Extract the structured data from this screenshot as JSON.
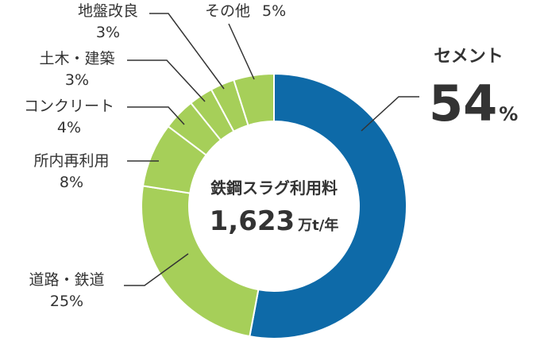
{
  "chart_data": {
    "type": "pie",
    "style": "donut",
    "center_label": "鉄鋼スラグ利用料",
    "center_value": "1,623",
    "center_unit": "万t/年",
    "colors": {
      "highlight": "#0e6aa8",
      "other": "#a6cf59",
      "separator": "#ffffff",
      "leader": "#333333"
    },
    "slices": [
      {
        "label": "セメント",
        "value": 54,
        "percent_text": "54",
        "percent_unit": "%"
      },
      {
        "label": "道路・鉄道",
        "value": 25,
        "percent_text": "25%"
      },
      {
        "label": "所内再利用",
        "value": 8,
        "percent_text": "8%"
      },
      {
        "label": "コンクリート",
        "value": 4,
        "percent_text": "4%"
      },
      {
        "label": "土木・建築",
        "value": 3,
        "percent_text": "3%"
      },
      {
        "label": "地盤改良",
        "value": 3,
        "percent_text": "3%"
      },
      {
        "label": "その他",
        "value": 5,
        "percent_text": "5%"
      }
    ]
  }
}
